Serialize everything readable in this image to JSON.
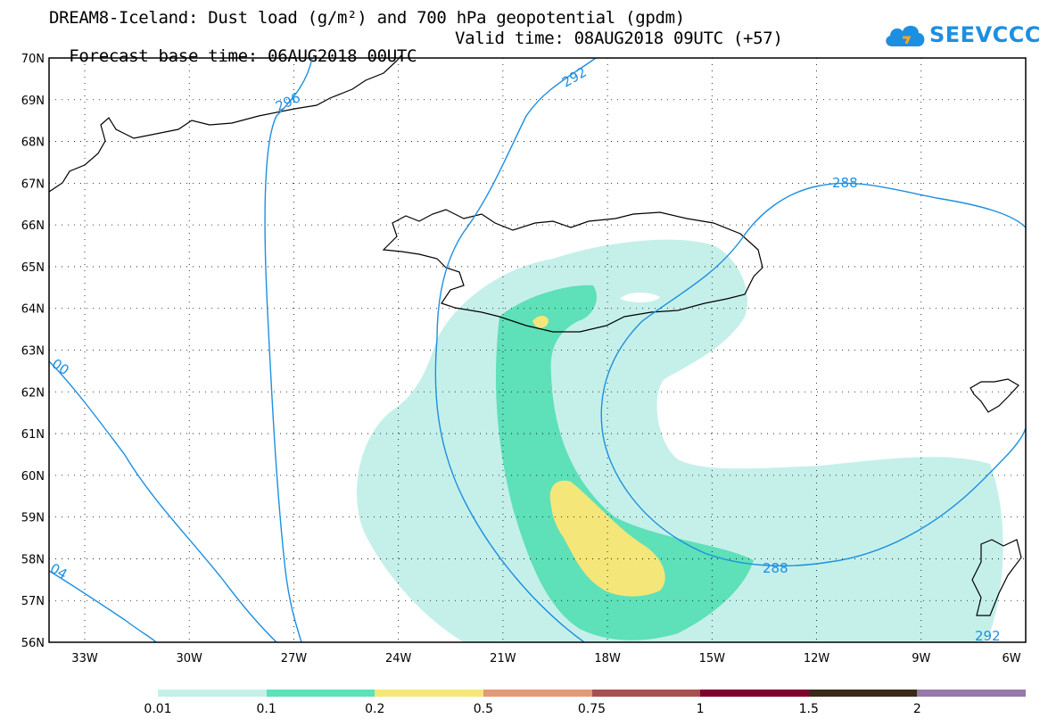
{
  "header": {
    "title_line1": "DREAM8-Iceland: Dust load (g/m²) and 700 hPa geopotential (gpdm)",
    "forecast_base": "Forecast base time: 06AUG2018 00UTC",
    "valid_time": "Valid time: 08AUG2018 09UTC (+57)"
  },
  "logo": {
    "text": "SEEVCCC",
    "icon": "cloud-icon",
    "color": "#1d8fe0"
  },
  "map": {
    "lat_labels": [
      "70N",
      "69N",
      "68N",
      "67N",
      "66N",
      "65N",
      "64N",
      "63N",
      "62N",
      "61N",
      "60N",
      "59N",
      "58N",
      "57N",
      "56N"
    ],
    "lon_labels": [
      "33W",
      "30W",
      "27W",
      "24W",
      "21W",
      "18W",
      "15W",
      "12W",
      "9W",
      "6W"
    ],
    "contour_color": "#1d8fe0",
    "contour_labels": [
      "296",
      "292",
      "288",
      "288",
      "292",
      "00",
      "04"
    ]
  },
  "colorbar": {
    "colors": [
      "#c5f0ea",
      "#5ee0b8",
      "#f5e67a",
      "#e39a78",
      "#a85050",
      "#800030",
      "#3a2a18",
      "#9878a8"
    ],
    "labels": [
      "0.01",
      "0.1",
      "0.2",
      "0.5",
      "0.75",
      "1",
      "1.5",
      "2"
    ]
  }
}
